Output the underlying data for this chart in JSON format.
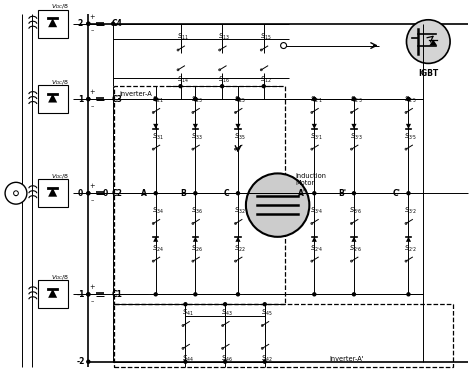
{
  "bg_color": "#ffffff",
  "fig_width": 4.74,
  "fig_height": 3.75,
  "dpi": 100,
  "igbt_label": "IGBT",
  "inverter_a_label": "inverter-A",
  "inverter_ap_label": "Inverter-A'",
  "motor_label": [
    "Induction",
    "Motor"
  ]
}
